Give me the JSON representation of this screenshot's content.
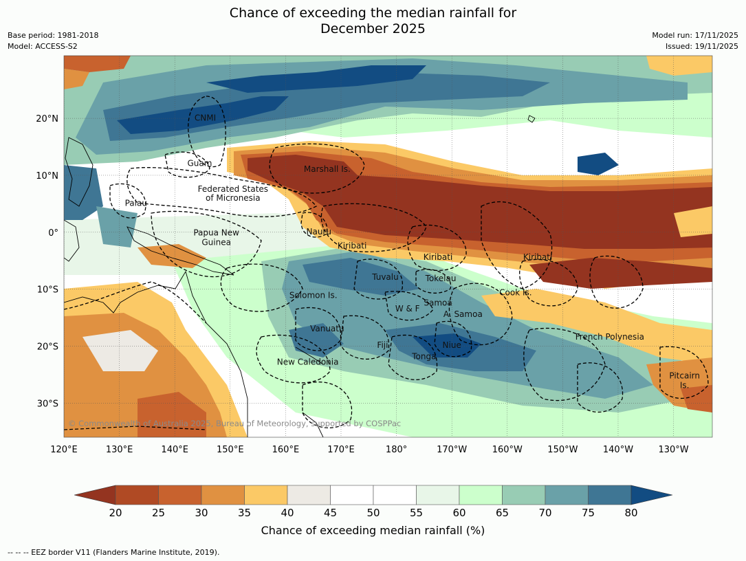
{
  "title": {
    "line1": "Chance of exceeding the median rainfall for",
    "line2": "December 2025"
  },
  "meta_left": {
    "base_period": "Base period: 1981-2018",
    "model": "Model: ACCESS-S2"
  },
  "meta_right": {
    "model_run": "Model run: 17/11/2025",
    "issued": "Issued: 19/11/2025"
  },
  "map": {
    "lon_range": [
      120,
      237
    ],
    "lat_range": [
      -36,
      31
    ],
    "lon_ticks": [
      {
        "lon": 120,
        "label": "120°E"
      },
      {
        "lon": 130,
        "label": "130°E"
      },
      {
        "lon": 140,
        "label": "140°E"
      },
      {
        "lon": 150,
        "label": "150°E"
      },
      {
        "lon": 160,
        "label": "160°E"
      },
      {
        "lon": 170,
        "label": "170°E"
      },
      {
        "lon": 180,
        "label": "180°"
      },
      {
        "lon": 190,
        "label": "170°W"
      },
      {
        "lon": 200,
        "label": "160°W"
      },
      {
        "lon": 210,
        "label": "150°W"
      },
      {
        "lon": 220,
        "label": "140°W"
      },
      {
        "lon": 230,
        "label": "130°W"
      }
    ],
    "lat_ticks": [
      {
        "lat": 20,
        "label": "20°N"
      },
      {
        "lat": 10,
        "label": "10°N"
      },
      {
        "lat": 0,
        "label": "0°"
      },
      {
        "lat": -10,
        "label": "10°S"
      },
      {
        "lat": -20,
        "label": "20°S"
      },
      {
        "lat": -30,
        "label": "30°S"
      }
    ],
    "labels": [
      {
        "text": "CNMI",
        "lon": 145.5,
        "lat": 20.1
      },
      {
        "text": "Guam",
        "lon": 144.5,
        "lat": 12.1
      },
      {
        "text": "Marshall Is.",
        "lon": 167.5,
        "lat": 11.1
      },
      {
        "text": "Federated States",
        "lon": 150.5,
        "lat": 7.6
      },
      {
        "text": "of Micronesia",
        "lon": 150.5,
        "lat": 6.0
      },
      {
        "text": "Palau",
        "lon": 133.0,
        "lat": 5.1
      },
      {
        "text": "Papua New",
        "lon": 147.5,
        "lat": -0.1
      },
      {
        "text": "Guinea",
        "lon": 147.5,
        "lat": -1.8
      },
      {
        "text": "Nauru",
        "lon": 166.0,
        "lat": 0.1
      },
      {
        "text": "Kiribati",
        "lon": 172.0,
        "lat": -2.4
      },
      {
        "text": "Kiribati",
        "lon": 187.5,
        "lat": -4.4
      },
      {
        "text": "Kiribati",
        "lon": 205.5,
        "lat": -4.4
      },
      {
        "text": "Tuvalu",
        "lon": 178.0,
        "lat": -7.9
      },
      {
        "text": "Tokelau",
        "lon": 188.0,
        "lat": -8.1
      },
      {
        "text": "Solomon Is.",
        "lon": 165.0,
        "lat": -11.1
      },
      {
        "text": "Cook Is.",
        "lon": 201.5,
        "lat": -10.6
      },
      {
        "text": "Samoa",
        "lon": 187.5,
        "lat": -12.4
      },
      {
        "text": "W & F",
        "lon": 182.0,
        "lat": -13.4
      },
      {
        "text": "A. Samoa",
        "lon": 192.0,
        "lat": -14.4
      },
      {
        "text": "Vanuatu",
        "lon": 167.5,
        "lat": -16.9
      },
      {
        "text": "French Polynesia",
        "lon": 218.5,
        "lat": -18.4
      },
      {
        "text": "Fiji",
        "lon": 177.5,
        "lat": -19.8
      },
      {
        "text": "Niue",
        "lon": 190.0,
        "lat": -19.8
      },
      {
        "text": "Tonga",
        "lon": 185.0,
        "lat": -21.8
      },
      {
        "text": "New Caledonia",
        "lon": 164.0,
        "lat": -22.8
      },
      {
        "text": "Pitcairn",
        "lon": 232.0,
        "lat": -25.2
      },
      {
        "text": "Is.",
        "lon": 232.0,
        "lat": -26.9
      }
    ]
  },
  "colorbar": {
    "ticks": [
      "20",
      "25",
      "30",
      "35",
      "40",
      "45",
      "50",
      "55",
      "60",
      "65",
      "70",
      "75",
      "80"
    ],
    "colors": [
      "#b04a24",
      "#c8622e",
      "#e09141",
      "#fbc966",
      "#edeae4",
      "#ffffff",
      "#ffffff",
      "#e8f6e8",
      "#ccffcc",
      "#98ccb4",
      "#6aa1a8",
      "#3f7694"
    ],
    "under_color": "#943420",
    "over_color": "#124c82",
    "title": "Chance of exceeding median rainfall (%)"
  },
  "copyright": "© Commonwealth of Australia 2025, Bureau of Meteorology, supported by COSPPac",
  "footnote": "--  --  -- EEZ border V11 (Flanders Marine Institute, 2019)."
}
